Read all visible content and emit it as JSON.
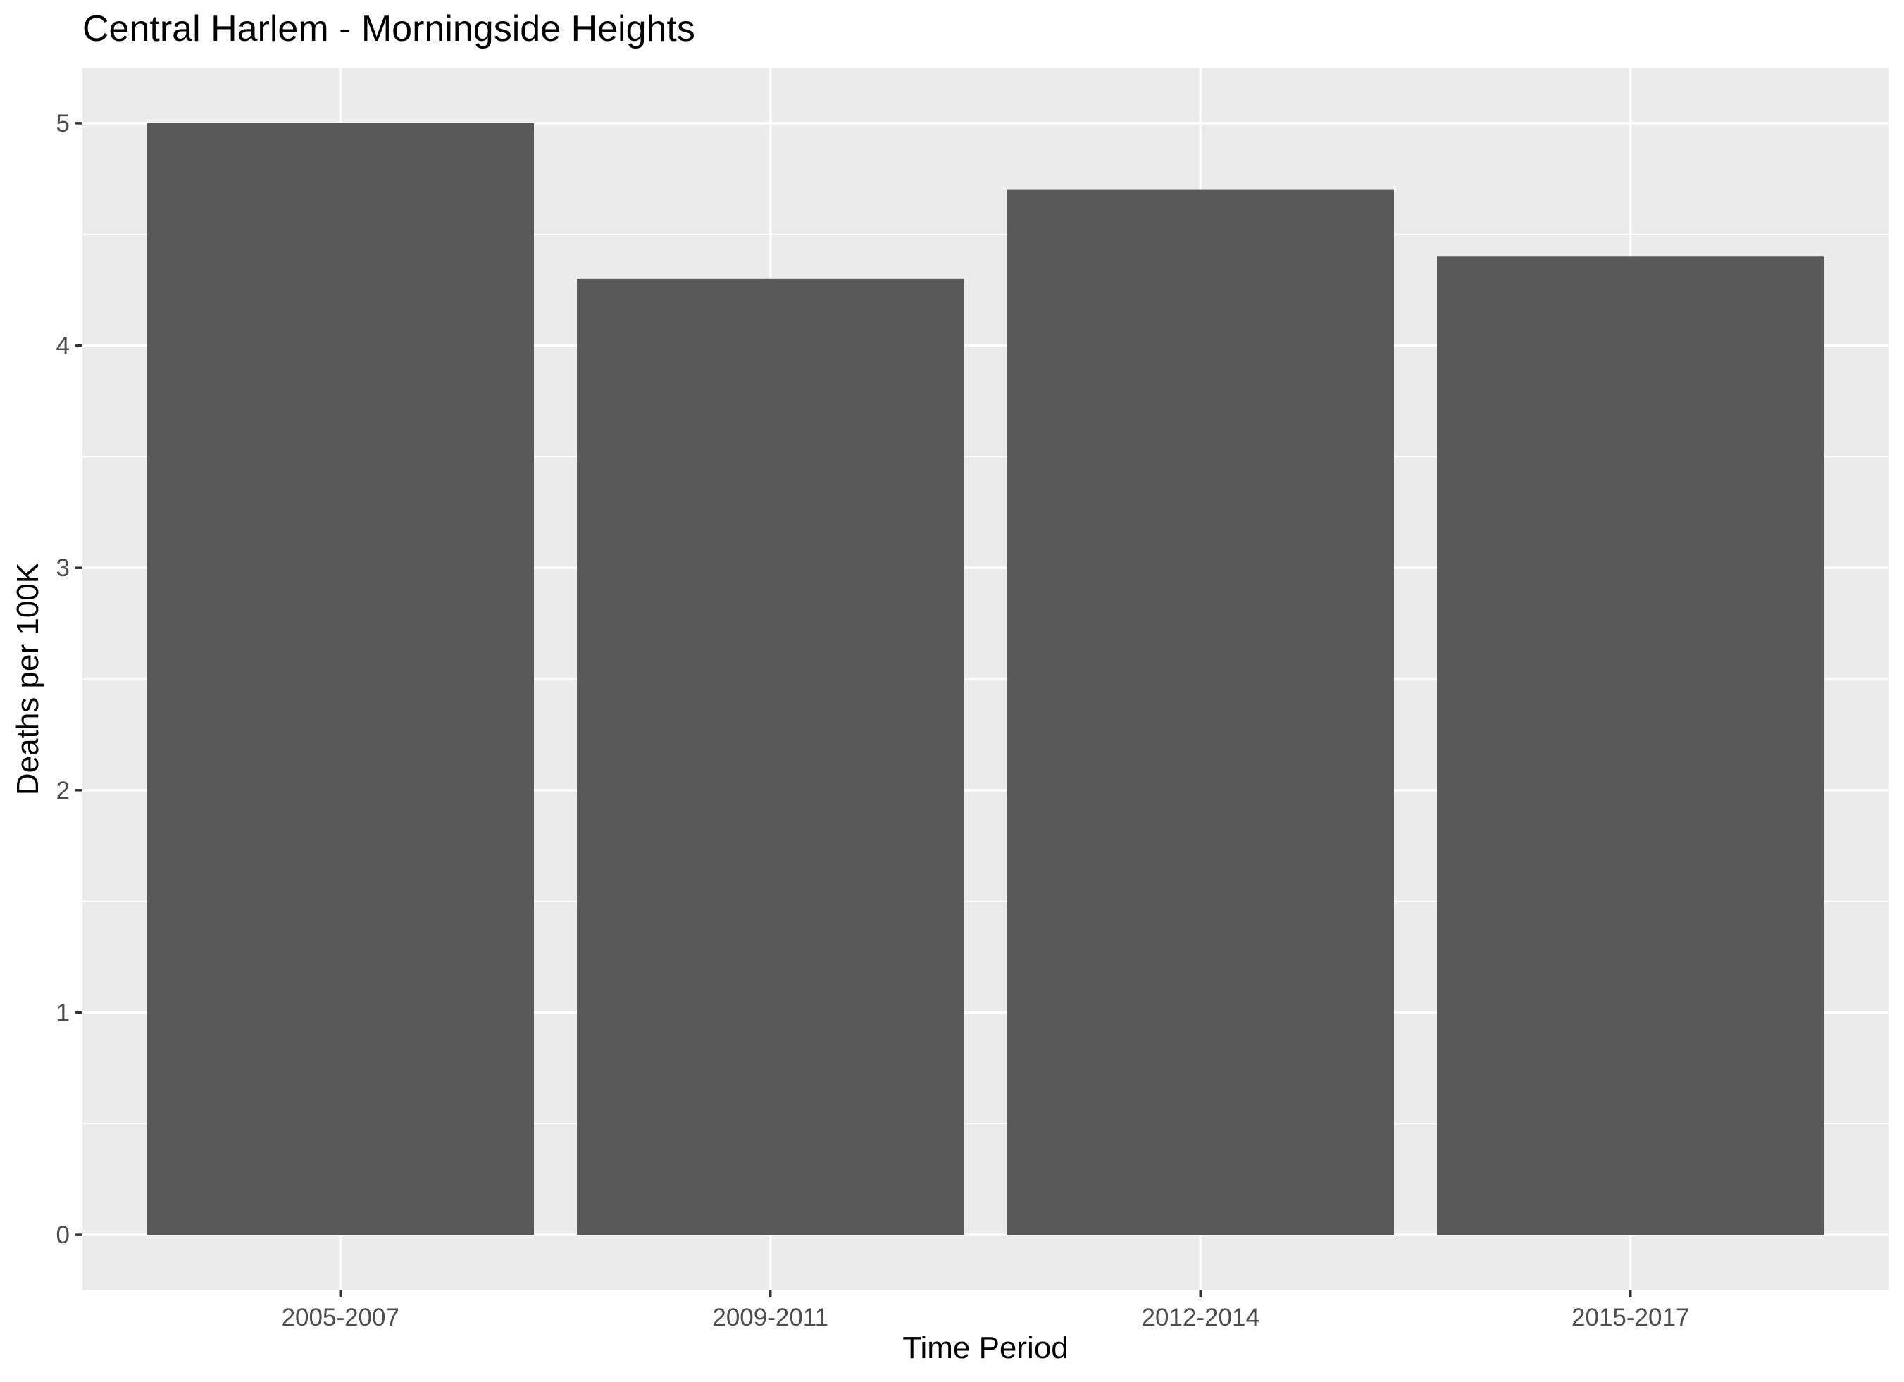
{
  "chart_data": {
    "type": "bar",
    "title": "Central Harlem - Morningside Heights",
    "xlabel": "Time Period",
    "ylabel": "Deaths per 100K",
    "categories": [
      "2005-2007",
      "2009-2011",
      "2012-2014",
      "2015-2017"
    ],
    "values": [
      5.0,
      4.3,
      4.7,
      4.4
    ],
    "ylim": [
      -0.25,
      5.25
    ],
    "y_ticks": [
      0,
      1,
      2,
      3,
      4,
      5
    ],
    "grid": true,
    "legend": "none",
    "colors": {
      "panel_background": "#ebebeb",
      "bar_fill": "#595959",
      "grid": "#ffffff"
    }
  }
}
